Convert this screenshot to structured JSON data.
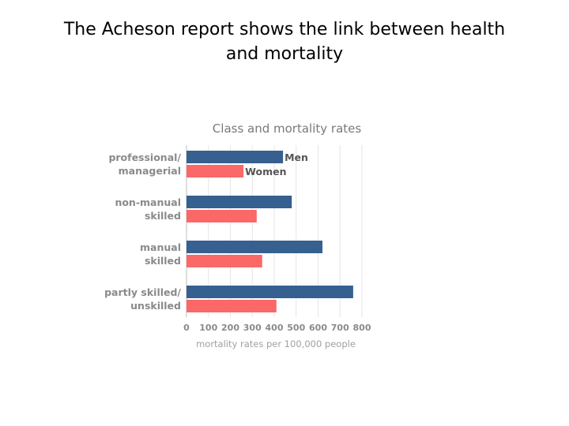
{
  "slide": {
    "title": "The Acheson report shows the link between health and mortality"
  },
  "chart_data": {
    "type": "bar",
    "orientation": "horizontal",
    "title": "Class and mortality rates",
    "categories": [
      [
        "professional/",
        "managerial"
      ],
      [
        "non-manual",
        "skilled"
      ],
      [
        "manual",
        "skilled"
      ],
      [
        "partly skilled/",
        "unskilled"
      ]
    ],
    "series": [
      {
        "name": "Men",
        "color": "#35608f",
        "values": [
          440,
          480,
          620,
          760
        ]
      },
      {
        "name": "Women",
        "color": "#fa6868",
        "values": [
          260,
          320,
          345,
          410
        ]
      }
    ],
    "xlabel": "mortality rates per 100,000 people",
    "ylabel": "",
    "xlim": [
      0,
      800
    ],
    "xticks": [
      0,
      100,
      200,
      300,
      400,
      500,
      600,
      700,
      800
    ],
    "grid": true,
    "legend": "inline-first-group"
  }
}
